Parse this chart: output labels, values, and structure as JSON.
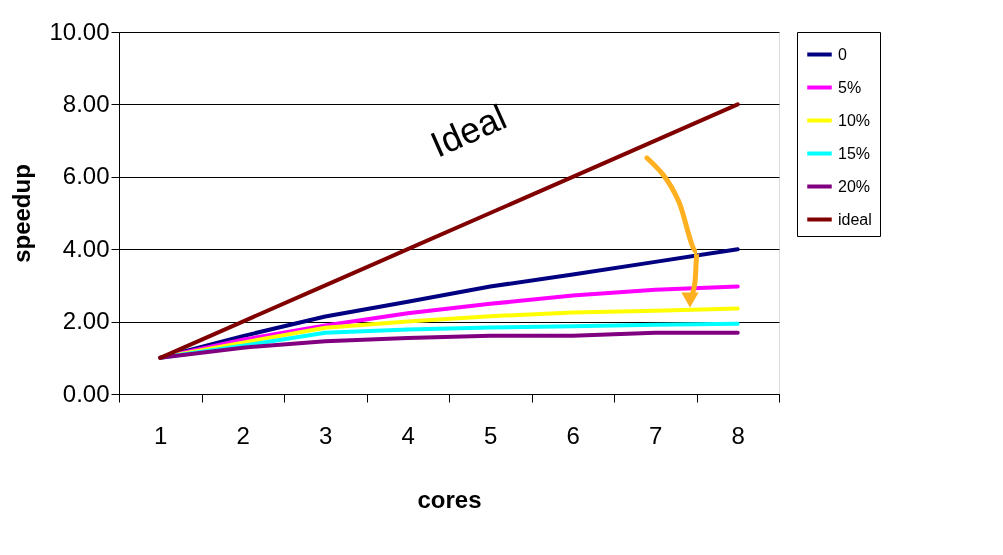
{
  "chart_data": {
    "type": "line",
    "xlabel": "cores",
    "ylabel": "speedup",
    "categories": [
      "1",
      "2",
      "3",
      "4",
      "5",
      "6",
      "7",
      "8"
    ],
    "series": [
      {
        "name": "0",
        "color": "#000080",
        "values": [
          1.0,
          1.6,
          2.14,
          2.55,
          2.97,
          3.3,
          3.65,
          4.0
        ]
      },
      {
        "name": "5%",
        "color": "#ff00ff",
        "values": [
          1.0,
          1.5,
          1.89,
          2.23,
          2.49,
          2.72,
          2.88,
          2.97
        ]
      },
      {
        "name": "10%",
        "color": "#ffff00",
        "values": [
          1.0,
          1.42,
          1.83,
          2.0,
          2.15,
          2.25,
          2.3,
          2.36
        ]
      },
      {
        "name": "15%",
        "color": "#00ffff",
        "values": [
          1.0,
          1.33,
          1.69,
          1.78,
          1.84,
          1.87,
          1.91,
          1.94
        ]
      },
      {
        "name": "20%",
        "color": "#800080",
        "values": [
          1.0,
          1.28,
          1.46,
          1.55,
          1.61,
          1.61,
          1.69,
          1.69
        ]
      },
      {
        "name": "ideal",
        "color": "#800000",
        "values": [
          1,
          2,
          3,
          4,
          5,
          6,
          7,
          8
        ]
      }
    ],
    "ylim": [
      0,
      10
    ],
    "yticks": [
      {
        "value": 0,
        "label": "0.00"
      },
      {
        "value": 2,
        "label": "2.00"
      },
      {
        "value": 4,
        "label": "4.00"
      },
      {
        "value": 6,
        "label": "6.00"
      },
      {
        "value": 8,
        "label": "8.00"
      },
      {
        "value": 10,
        "label": "10.00"
      }
    ],
    "grid": "y",
    "legend": "right",
    "marker": "none",
    "line_style": "solid",
    "annotations": [
      "Ideal"
    ]
  }
}
